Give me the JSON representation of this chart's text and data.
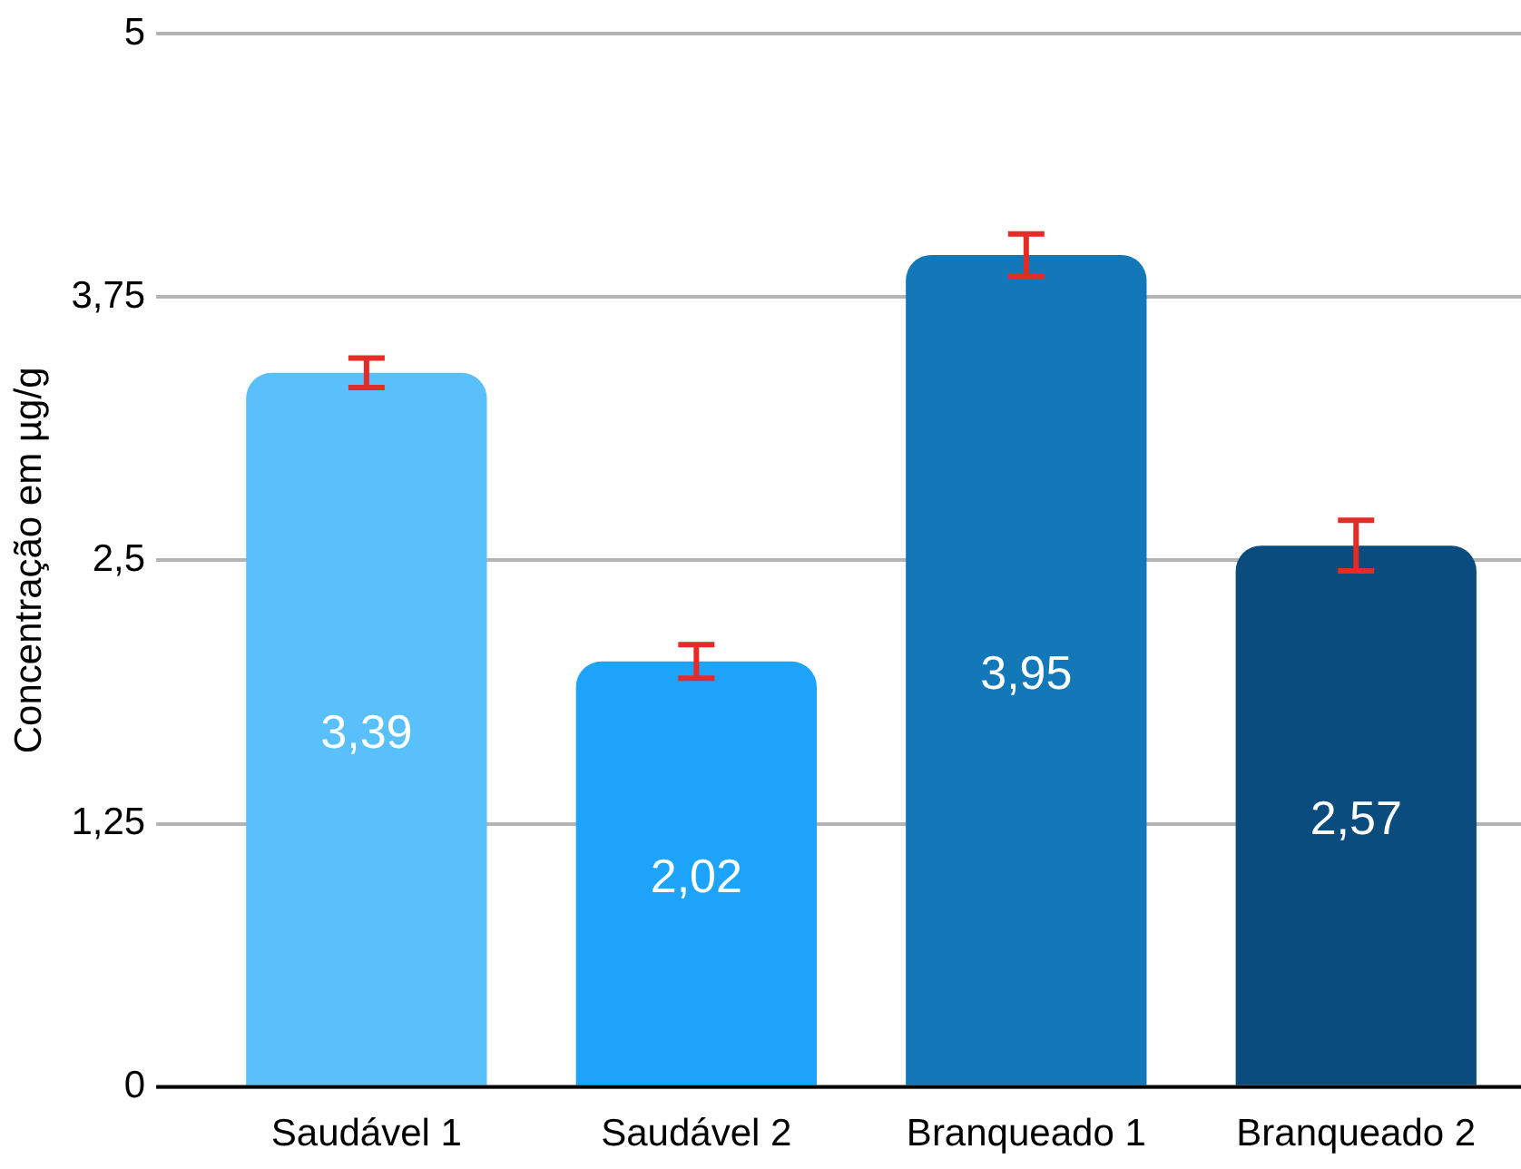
{
  "chart_data": {
    "type": "bar",
    "ylabel": "Concentração em µg/g",
    "categories": [
      "Saudável 1",
      "Saudável 2",
      "Branqueado 1",
      "Branqueado 2"
    ],
    "values": [
      3.39,
      2.02,
      3.95,
      2.57
    ],
    "colors": [
      "#5ac0fb",
      "#1ea3fa",
      "#1378b8",
      "#0a4c7e"
    ],
    "value_labels": [
      "3,39",
      "2,02",
      "3,95",
      "2,57"
    ],
    "errors": [
      0.07,
      0.08,
      0.1,
      0.12
    ],
    "ylim": [
      0,
      5
    ],
    "yticks": [
      {
        "value": 0,
        "label": "0"
      },
      {
        "value": 1.25,
        "label": "1,25"
      },
      {
        "value": 2.5,
        "label": "2,5"
      },
      {
        "value": 3.75,
        "label": "3,75"
      },
      {
        "value": 5,
        "label": "5"
      }
    ],
    "grid": "y",
    "legend": false
  }
}
